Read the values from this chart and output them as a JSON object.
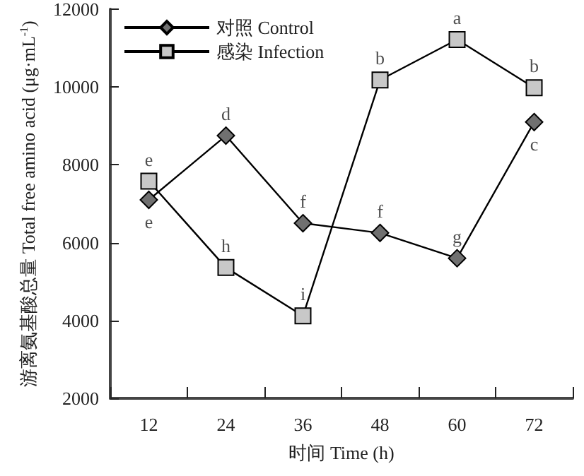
{
  "chart_data": {
    "type": "line",
    "xlabel": "时间 Time (h)",
    "ylabel": "游离氨基酸总量 Total free amino acid (μg·mL$^{-1}$)",
    "categories": [
      "12",
      "24",
      "36",
      "48",
      "60",
      "72"
    ],
    "series": [
      {
        "name": "对照 Control",
        "color": "#707070",
        "marker": "diamond",
        "values": [
          7100,
          8750,
          6500,
          6250,
          5600,
          9100
        ]
      },
      {
        "name": "感染 Infection",
        "color": "#c8c8c8",
        "marker": "square",
        "values": [
          7580,
          5360,
          4120,
          10180,
          11220,
          9980
        ]
      }
    ],
    "ylim": [
      2000,
      12000
    ],
    "yticks": [
      2000,
      4000,
      6000,
      8000,
      10000,
      12000
    ],
    "grid": false,
    "legend": "top left",
    "line_style": "solid",
    "annotations": [
      {
        "text": "e",
        "x": "12",
        "y": 7100
      },
      {
        "text": "d",
        "x": "24",
        "y": 8750
      },
      {
        "text": "f",
        "x": "36",
        "y": 6500
      },
      {
        "text": "f",
        "x": "48",
        "y": 6250
      },
      {
        "text": "g",
        "x": "60",
        "y": 5600
      },
      {
        "text": "c",
        "x": "72",
        "y": 9100
      },
      {
        "text": "e",
        "x": "12",
        "y": 7580
      },
      {
        "text": "h",
        "x": "24",
        "y": 5360
      },
      {
        "text": "i",
        "x": "36",
        "y": 4120
      },
      {
        "text": "b",
        "x": "48",
        "y": 10180
      },
      {
        "text": "a",
        "x": "60",
        "y": 11220
      },
      {
        "text": "b",
        "x": "72",
        "y": 9980
      }
    ]
  }
}
